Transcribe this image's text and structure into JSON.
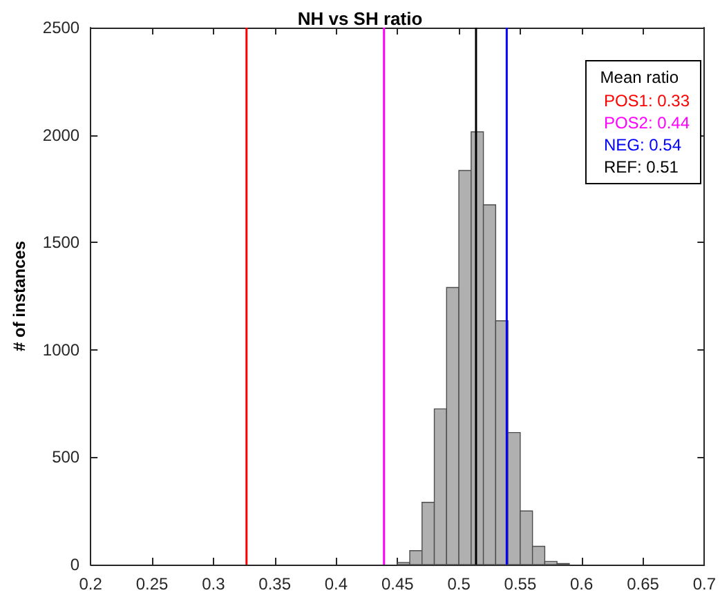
{
  "chart_data": {
    "type": "histogram",
    "title": "NH vs SH ratio",
    "ylabel": "# of instances",
    "legend_title": "Mean ratio",
    "bins": [
      0.45,
      0.46,
      0.47,
      0.48,
      0.49,
      0.5,
      0.51,
      0.52,
      0.53,
      0.54,
      0.55,
      0.56,
      0.57,
      0.58,
      0.59
    ],
    "values": [
      10,
      65,
      290,
      725,
      1290,
      1835,
      2015,
      1675,
      1135,
      615,
      250,
      85,
      15,
      5
    ],
    "color": "#b0b0b0",
    "xlim": [
      0.2,
      0.7
    ],
    "xticks": [
      0.2,
      0.25,
      0.3,
      0.35,
      0.4,
      0.45,
      0.5,
      0.55,
      0.6,
      0.65,
      0.7
    ],
    "ylim": [
      0,
      2500
    ],
    "yticks": [
      0,
      500,
      1000,
      1500,
      2000,
      2500
    ],
    "ref_lines": [
      {
        "axis": "x",
        "value": 0.327,
        "label": "POS1: 0.33",
        "color": "#ff0000"
      },
      {
        "axis": "x",
        "value": 0.439,
        "label": "POS2: 0.44",
        "color": "#ff00ff"
      },
      {
        "axis": "x",
        "value": 0.539,
        "label": "NEG: 0.54",
        "color": "#0000ff"
      },
      {
        "axis": "x",
        "value": 0.514,
        "label": "REF: 0.51",
        "color": "#000000"
      }
    ],
    "grid": false,
    "legend": "top right"
  }
}
